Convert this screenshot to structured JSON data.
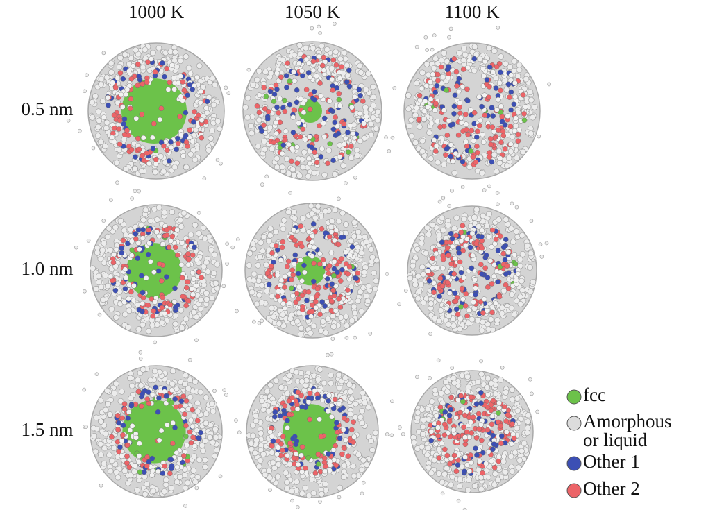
{
  "columns": [
    "1000 K",
    "1050 K",
    "1100 K"
  ],
  "rows": [
    "0.5 nm",
    "1.0 nm",
    "1.5 nm"
  ],
  "legend": [
    {
      "label": [
        "fcc"
      ],
      "color": "#6cc24a"
    },
    {
      "label": [
        "Amorphous",
        "or liquid"
      ],
      "color": "#dcdcdc"
    },
    {
      "label": [
        "Other 1"
      ],
      "color": "#3c4fb4"
    },
    {
      "label": [
        "Other 2"
      ],
      "color": "#ec6468"
    }
  ]
}
